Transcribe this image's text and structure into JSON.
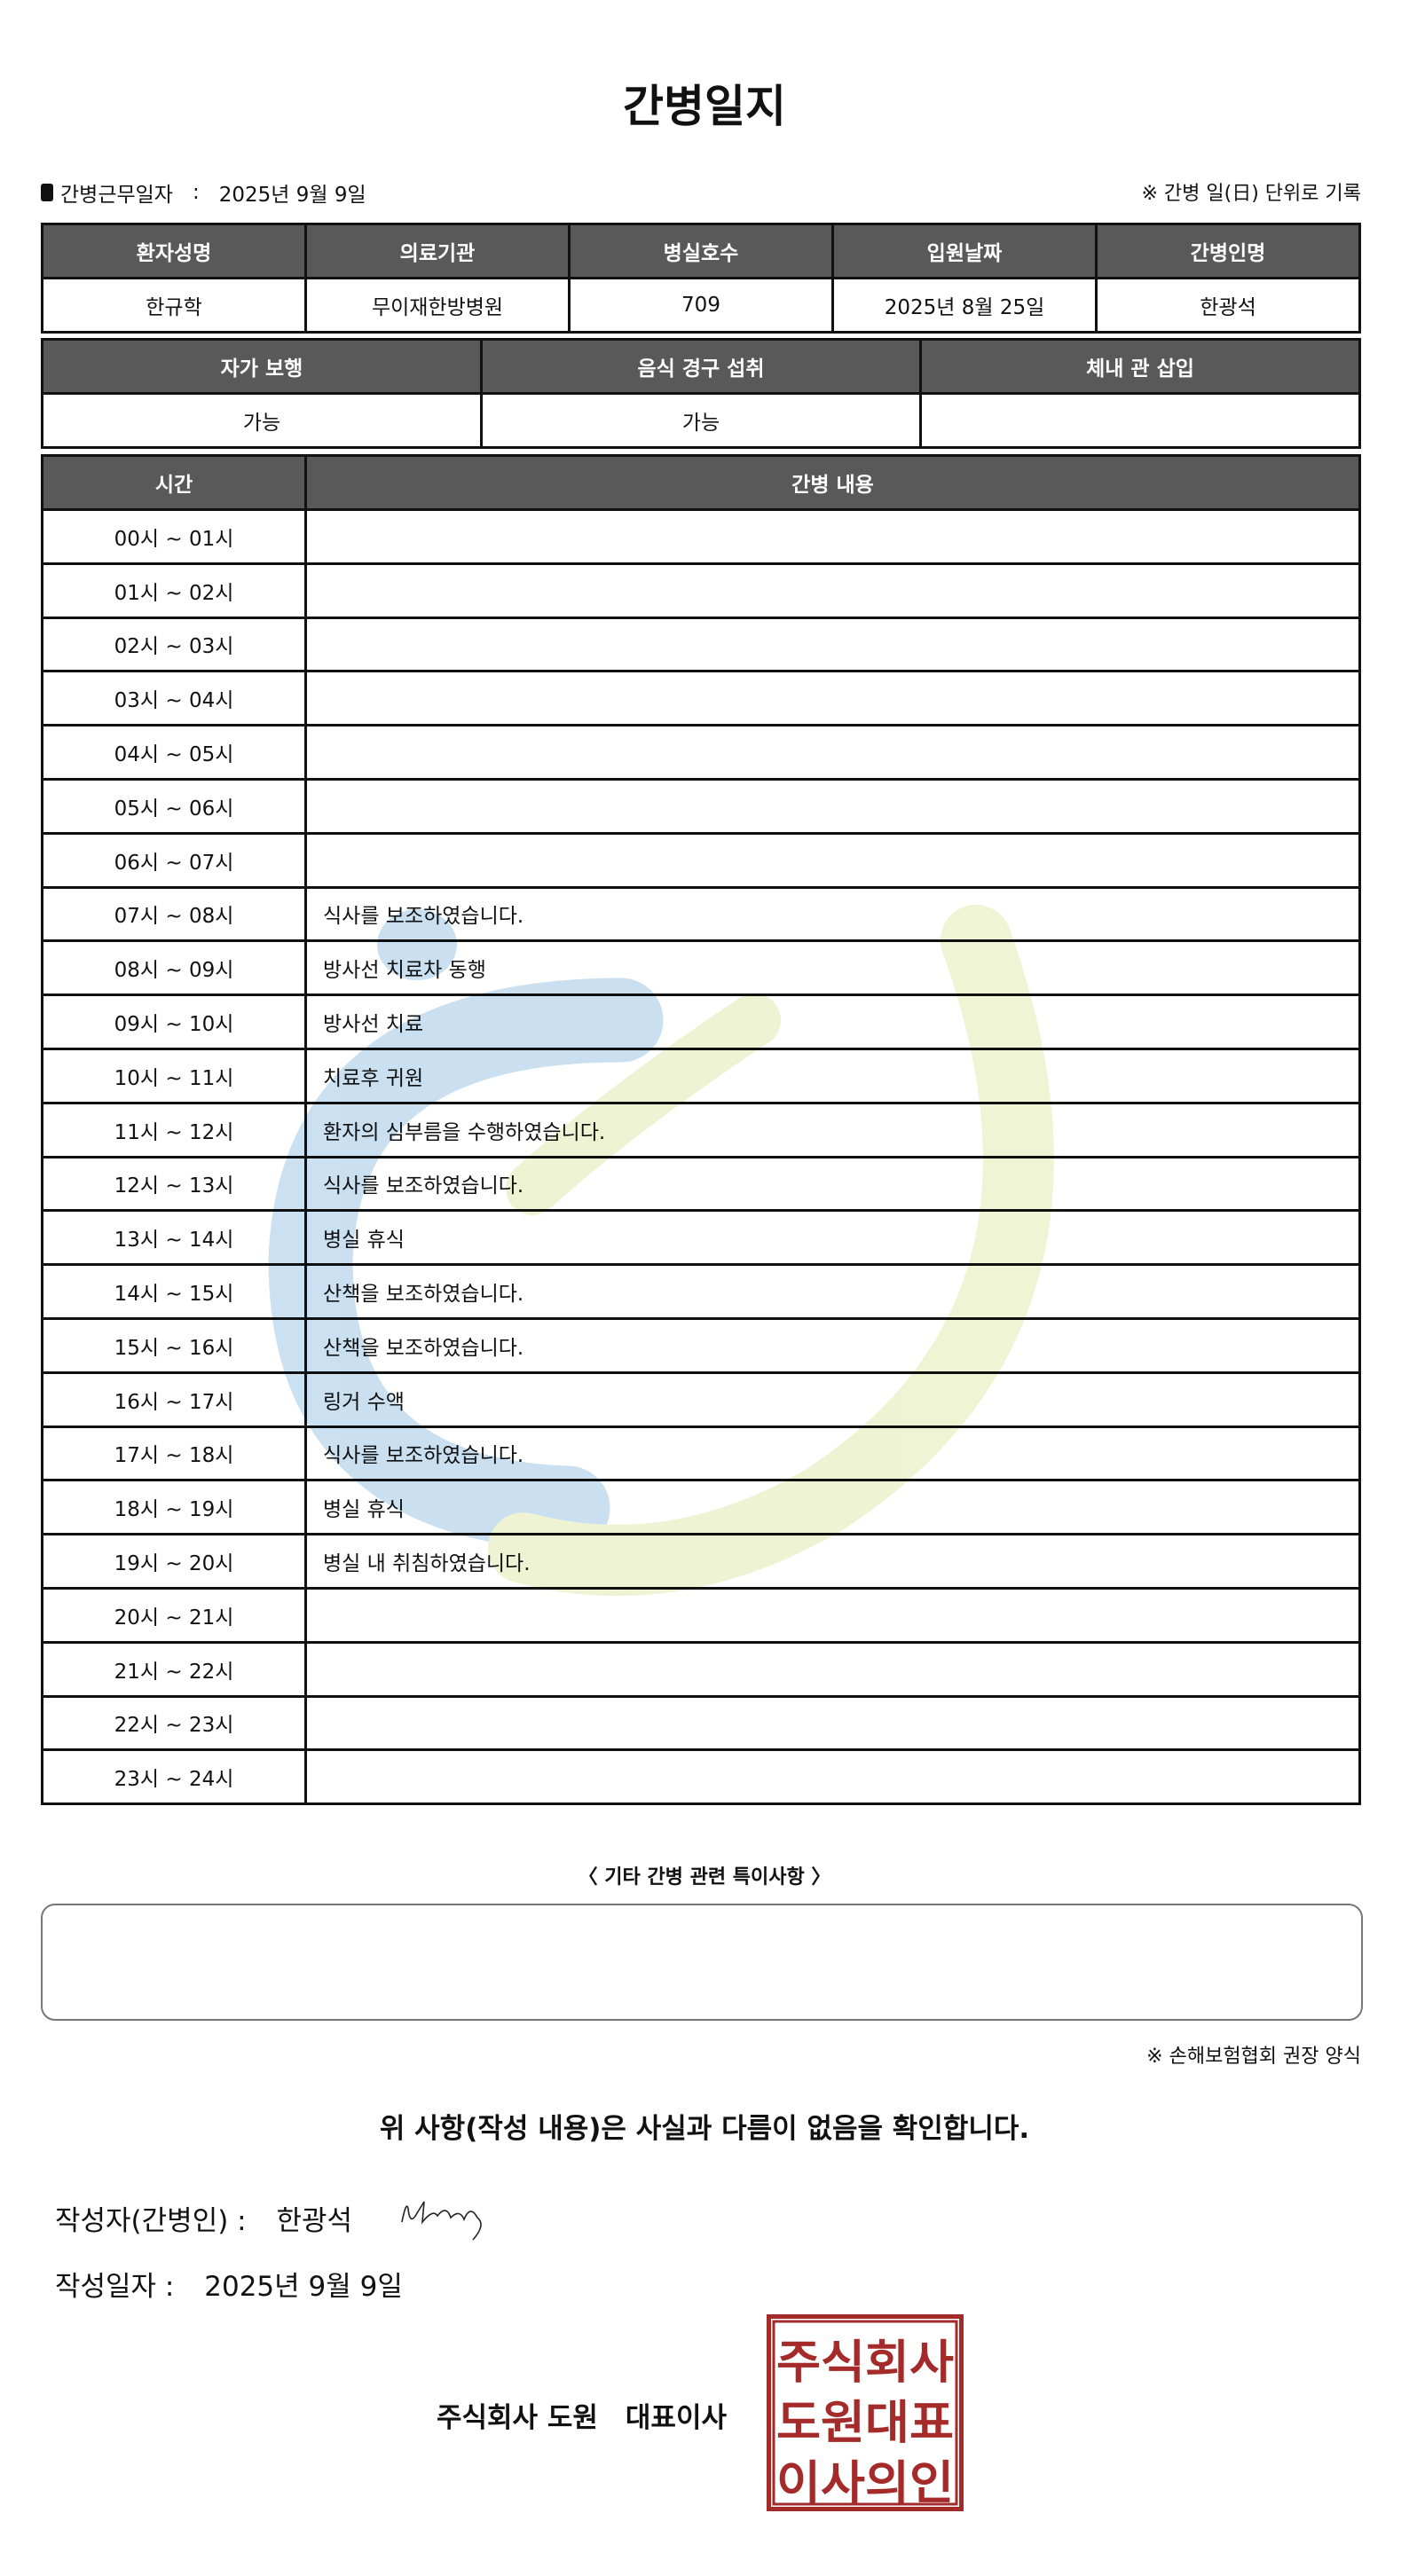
{
  "title": "간병일지",
  "work_date": {
    "label": "간병근무일자",
    "separator": ":",
    "value": "2025년 9월 9일"
  },
  "record_note": "※ 간병 일(日) 단위로 기록",
  "patient_table": {
    "headers": [
      "환자성명",
      "의료기관",
      "병실호수",
      "입원날짜",
      "간병인명"
    ],
    "values": [
      "한규학",
      "무이재한방병원",
      "709",
      "2025년 8월 25일",
      "한광석"
    ]
  },
  "status_table": {
    "headers": [
      "자가 보행",
      "음식 경구 섭취",
      "체내 관 삽입"
    ],
    "values": [
      "가능",
      "가능",
      ""
    ]
  },
  "care_table": {
    "headers": [
      "시간",
      "간병 내용"
    ],
    "rows": [
      {
        "time": "00시 ~ 01시",
        "content": ""
      },
      {
        "time": "01시 ~ 02시",
        "content": ""
      },
      {
        "time": "02시 ~ 03시",
        "content": ""
      },
      {
        "time": "03시 ~ 04시",
        "content": ""
      },
      {
        "time": "04시 ~ 05시",
        "content": ""
      },
      {
        "time": "05시 ~ 06시",
        "content": ""
      },
      {
        "time": "06시 ~ 07시",
        "content": ""
      },
      {
        "time": "07시 ~ 08시",
        "content": "식사를 보조하였습니다."
      },
      {
        "time": "08시 ~ 09시",
        "content": "방사선 치료차 동행"
      },
      {
        "time": "09시 ~ 10시",
        "content": "방사선 치료"
      },
      {
        "time": "10시 ~ 11시",
        "content": "치료후 귀원"
      },
      {
        "time": "11시 ~ 12시",
        "content": "환자의 심부름을 수행하였습니다."
      },
      {
        "time": "12시 ~ 13시",
        "content": "식사를 보조하였습니다."
      },
      {
        "time": "13시 ~ 14시",
        "content": "병실 휴식"
      },
      {
        "time": "14시 ~ 15시",
        "content": "산책을 보조하였습니다."
      },
      {
        "time": "15시 ~ 16시",
        "content": "산책을 보조하였습니다."
      },
      {
        "time": "16시 ~ 17시",
        "content": "링거 수액"
      },
      {
        "time": "17시 ~ 18시",
        "content": "식사를 보조하였습니다."
      },
      {
        "time": "18시 ~ 19시",
        "content": "병실 휴식"
      },
      {
        "time": "19시 ~ 20시",
        "content": "병실 내 취침하였습니다."
      },
      {
        "time": "20시 ~ 21시",
        "content": ""
      },
      {
        "time": "21시 ~ 22시",
        "content": ""
      },
      {
        "time": "22시 ~ 23시",
        "content": ""
      },
      {
        "time": "23시 ~ 24시",
        "content": ""
      }
    ]
  },
  "notes": {
    "title": "〈 기타 간병 관련 특이사항 〉",
    "value": ""
  },
  "footnote": "※ 손해보험협회 권장 양식",
  "confirmation": "위 사항(작성 내용)은 사실과 다름이 없음을 확인합니다.",
  "writer": {
    "label": "작성자(간병인) :",
    "name": "한광석"
  },
  "written_date": {
    "label": "작성일자 :",
    "value": "2025년 9월 9일"
  },
  "company": "주식회사 도원　대표이사",
  "seal_text": [
    "주식회사",
    "도원대표",
    "이사의인"
  ],
  "colors": {
    "header_bg": "#595959",
    "seal": "#a52a2a",
    "watermark_blue": "#c8dff0",
    "watermark_green": "#eef3d2"
  }
}
